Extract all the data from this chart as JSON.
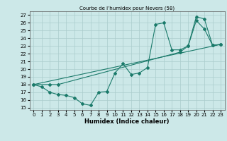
{
  "title": "Courbe de l’humidex pour Nevers (58)",
  "xlabel": "Humidex (Indice chaleur)",
  "bg_color": "#cce8e8",
  "grid_color": "#aacccc",
  "line_color": "#1a7a6a",
  "xlim": [
    -0.5,
    23.5
  ],
  "ylim": [
    14.7,
    27.5
  ],
  "yticks": [
    15,
    16,
    17,
    18,
    19,
    20,
    21,
    22,
    23,
    24,
    25,
    26,
    27
  ],
  "xticks": [
    0,
    1,
    2,
    3,
    4,
    5,
    6,
    7,
    8,
    9,
    10,
    11,
    12,
    13,
    14,
    15,
    16,
    17,
    18,
    19,
    20,
    21,
    22,
    23
  ],
  "line1": {
    "x": [
      0,
      1,
      2,
      3,
      4,
      5,
      6,
      7,
      8,
      9,
      10,
      11,
      12,
      13,
      14,
      15,
      16,
      17,
      18,
      19,
      20,
      21,
      22,
      23
    ],
    "y": [
      18,
      17.7,
      17,
      16.7,
      16.6,
      16.3,
      15.5,
      15.3,
      17,
      17.1,
      19.5,
      20.7,
      19.3,
      19.5,
      20.2,
      25.8,
      26,
      22.5,
      22.5,
      23.0,
      26.3,
      25.2,
      23.1,
      23.2
    ]
  },
  "line2": {
    "x": [
      0,
      2,
      3,
      18,
      19,
      20,
      21,
      22,
      23
    ],
    "y": [
      18,
      18,
      18,
      22.2,
      23.0,
      26.8,
      26.5,
      23.1,
      23.2
    ]
  },
  "line3": {
    "x": [
      0,
      23
    ],
    "y": [
      18,
      23.2
    ]
  }
}
